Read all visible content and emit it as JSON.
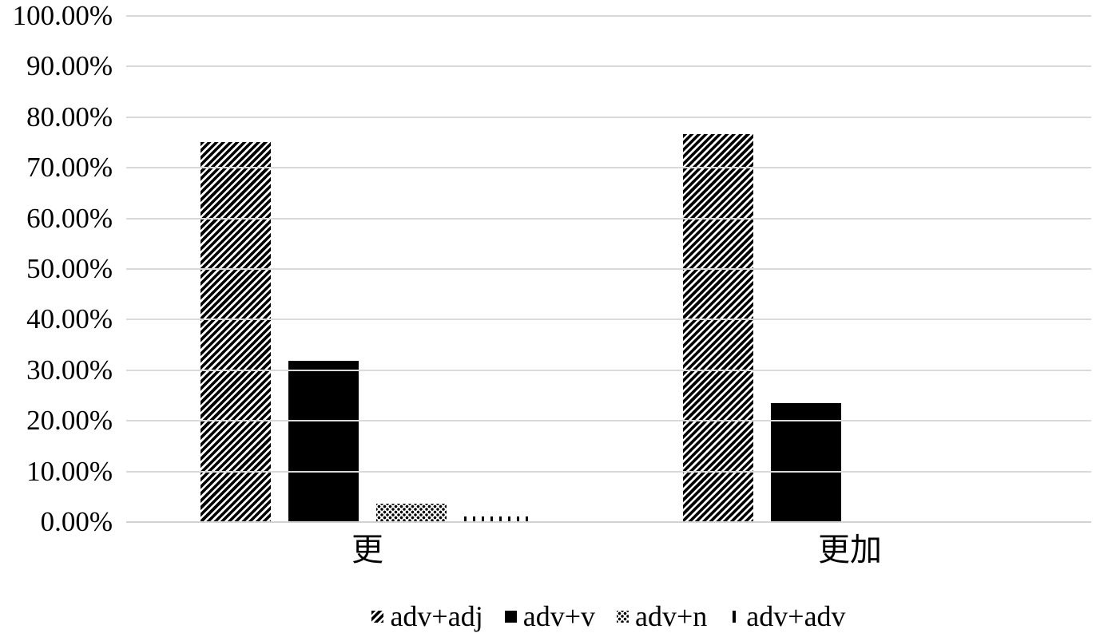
{
  "chart_data": {
    "type": "bar",
    "categories": [
      "更",
      "更加"
    ],
    "series": [
      {
        "name": "adv+adj",
        "pattern": "diagonal-hatch",
        "values": [
          75.0,
          76.7
        ]
      },
      {
        "name": "adv+v",
        "pattern": "solid",
        "values": [
          31.9,
          23.5
        ]
      },
      {
        "name": "adv+n",
        "pattern": "dots",
        "values": [
          3.6,
          0.0
        ]
      },
      {
        "name": "adv+adv",
        "pattern": "vertical-dashes",
        "values": [
          1.1,
          0.0
        ]
      }
    ],
    "title": "",
    "xlabel": "",
    "ylabel": "",
    "ylim": [
      0,
      100
    ],
    "y_ticks": [
      "100.00%",
      "90.00%",
      "80.00%",
      "70.00%",
      "60.00%",
      "50.00%",
      "40.00%",
      "30.00%",
      "20.00%",
      "10.00%",
      "0.00%"
    ],
    "grid": true,
    "legend_position": "bottom",
    "colors": {
      "bar": "#000000",
      "text": "#000000",
      "gridline": "#d9d9d9",
      "background": "#ffffff"
    }
  }
}
